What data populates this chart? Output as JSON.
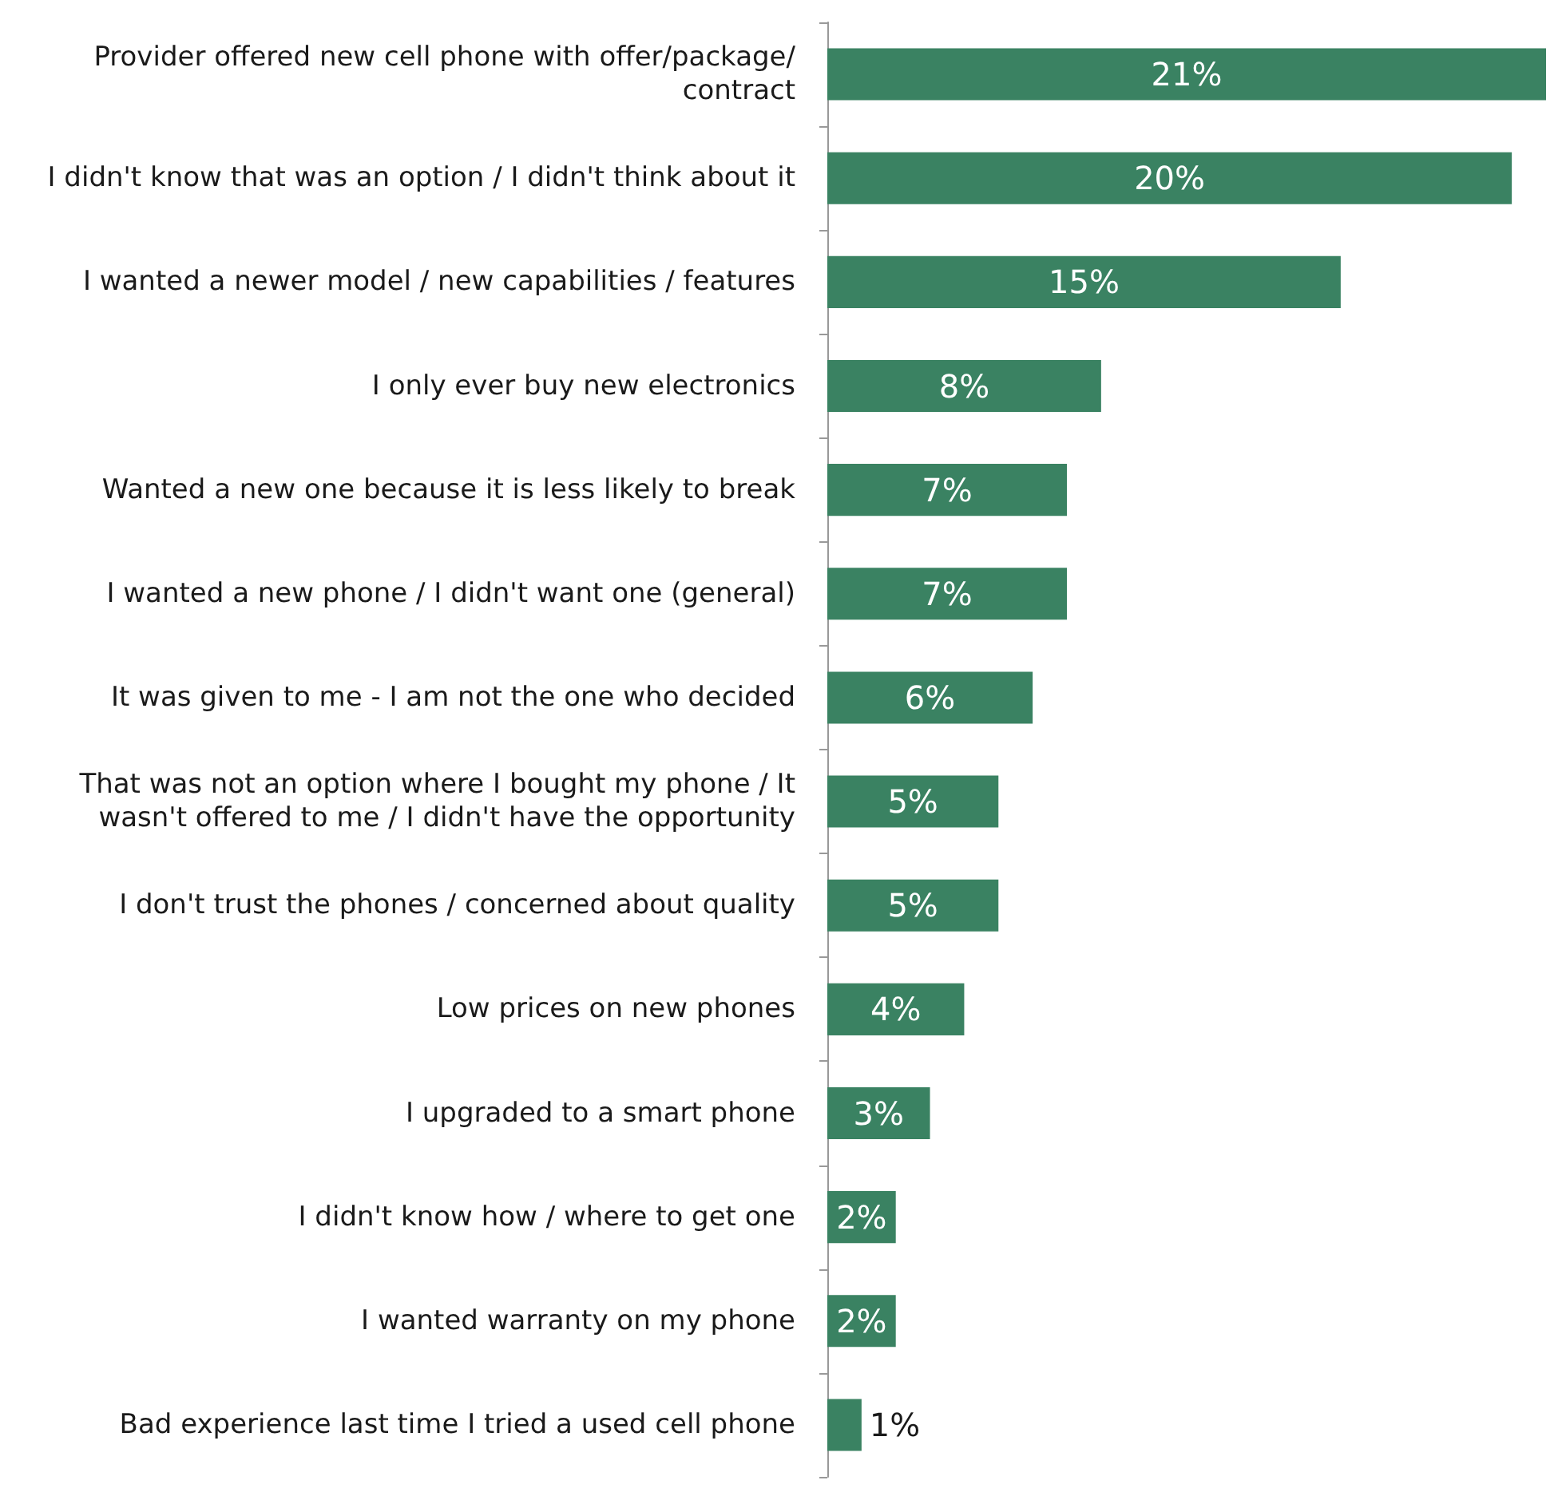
{
  "chart_data": {
    "type": "bar",
    "orientation": "horizontal",
    "color": "#3a8262",
    "categories": [
      "Provider offered new cell phone with offer/package/\ncontract",
      "I didn't know that was an option / I didn't think about it",
      "I wanted a newer model / new capabilities / features",
      "I only ever buy new electronics",
      "Wanted a new one because it is less likely to break",
      "I wanted a new phone / I didn't want one (general)",
      "It was given to me - I am not the one who decided",
      "That was not an option where I bought my phone / It\nwasn't offered to me / I didn't have the opportunity",
      "I don't trust the phones / concerned about quality",
      "Low prices on new phones",
      "I upgraded to a smart phone",
      "I didn't know how / where to get one",
      "I wanted warranty on my phone",
      "Bad experience last time I tried a used cell phone"
    ],
    "values": [
      21,
      20,
      15,
      8,
      7,
      7,
      6,
      5,
      5,
      4,
      3,
      2,
      2,
      1
    ],
    "value_labels": [
      "21%",
      "20%",
      "15%",
      "8%",
      "7%",
      "7%",
      "6%",
      "5%",
      "5%",
      "4%",
      "3%",
      "2%",
      "2%",
      "1%"
    ]
  }
}
